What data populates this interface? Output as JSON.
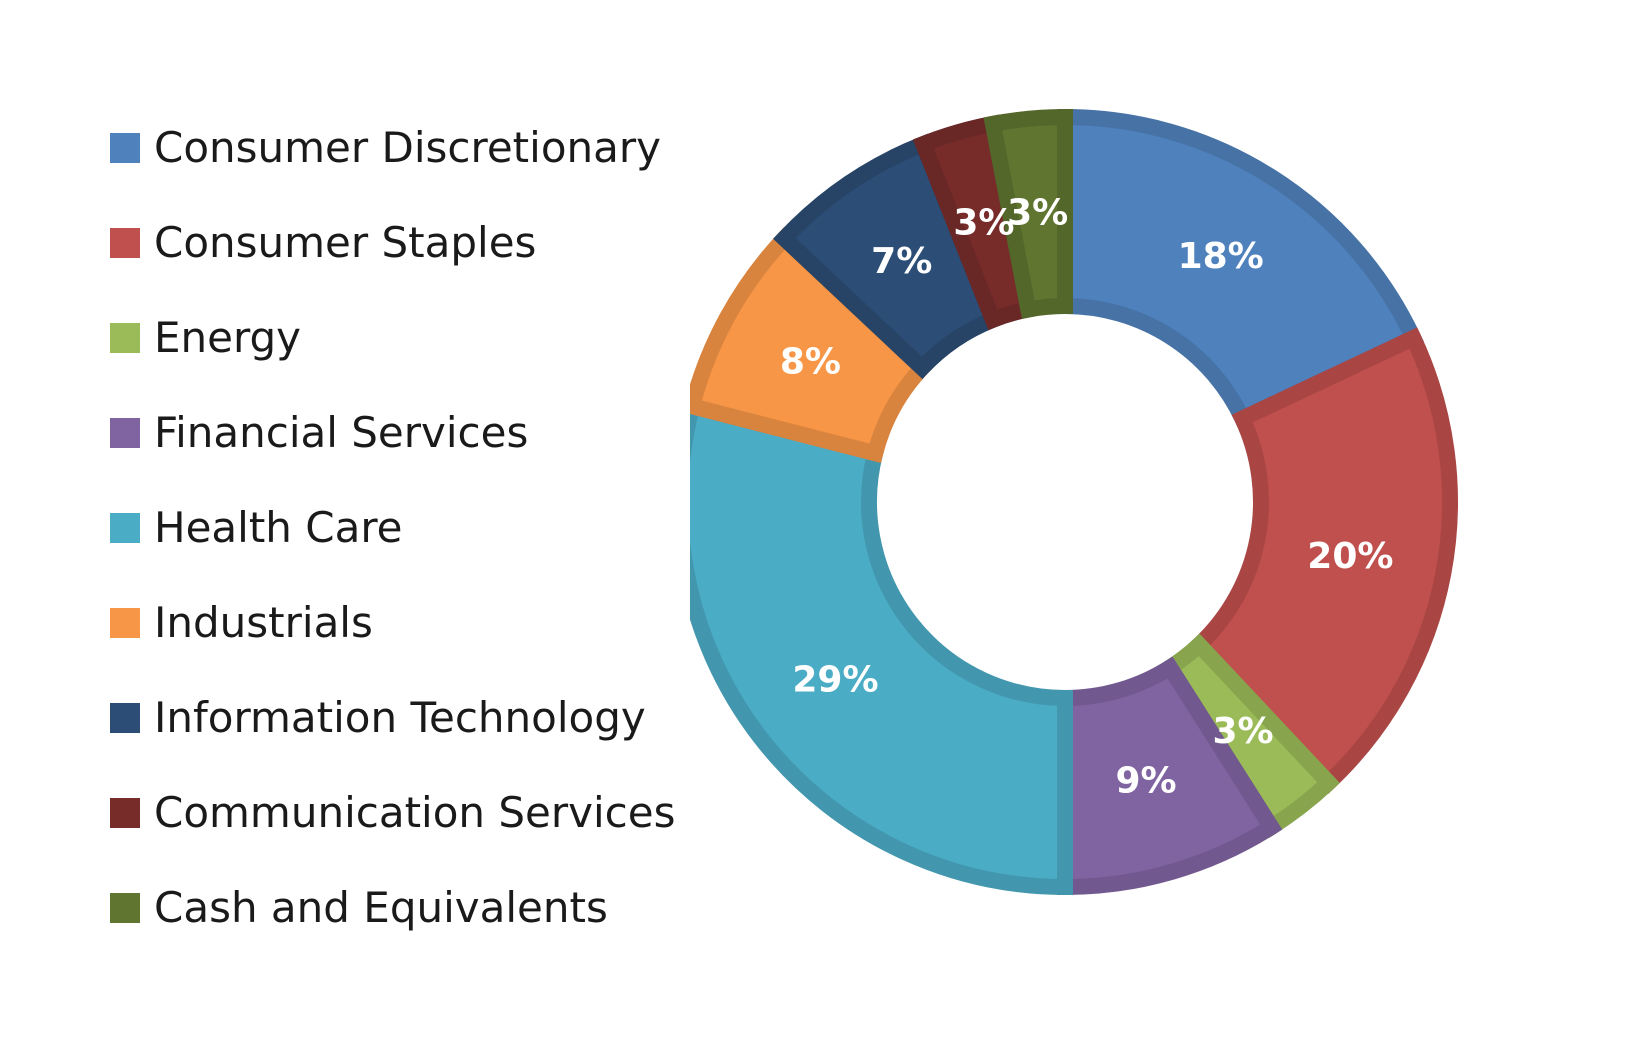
{
  "chart_data": {
    "type": "pie",
    "donut": true,
    "title": "",
    "legend_position": "left",
    "categories": [
      "Consumer Discretionary",
      "Consumer Staples",
      "Energy",
      "Financial Services",
      "Health Care",
      "Industrials",
      "Information Technology",
      "Communication Services",
      "Cash and Equivalents"
    ],
    "values": [
      18,
      20,
      3,
      9,
      29,
      8,
      7,
      3,
      3
    ],
    "labels": [
      "18%",
      "20%",
      "3%",
      "9%",
      "29%",
      "8%",
      "7%",
      "3%",
      "3%"
    ],
    "colors": [
      "#4f81bd",
      "#c0504d",
      "#9bbb59",
      "#8064a2",
      "#4bacc6",
      "#f79646",
      "#2c4d75",
      "#772c2a",
      "#5f7530"
    ]
  }
}
